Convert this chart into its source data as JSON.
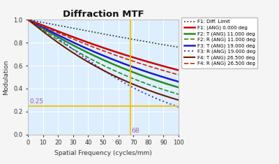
{
  "title": "Diffraction MTF",
  "xlabel": "Spatial Frequency (cycles/mm)",
  "ylabel": "Modulation",
  "xlim": [
    0,
    100
  ],
  "ylim": [
    0,
    1.0
  ],
  "bg_color": "#ddeeff",
  "fig_bg_color": "#f5f5f5",
  "vline_x": 68,
  "hline_y": 0.25,
  "vline_color": "#f5c000",
  "hline_color": "#f5c000",
  "annotation_68": "68",
  "annotation_025": "0.25",
  "annotation_color": "#9b59b6",
  "curves": [
    {
      "id": "diff_limit",
      "color": "#222222",
      "ls": "dotted",
      "lw": 1.2,
      "label": "F1: Diff. Limit",
      "v0": 1.0,
      "v100": 0.76
    },
    {
      "id": "f1t",
      "color": "#cc0000",
      "ls": "solid",
      "lw": 1.8,
      "label": "F1: (ANG) 0.000 deg",
      "v0": 1.0,
      "v100": 0.56
    },
    {
      "id": "f2t",
      "color": "#228b22",
      "ls": "solid",
      "lw": 1.8,
      "label": "F2: T (ANG) 11.000 deg",
      "v0": 1.0,
      "v100": 0.41
    },
    {
      "id": "f2r",
      "color": "#228b22",
      "ls": "dashed",
      "lw": 1.2,
      "label": "F2: R (ANG) 11.000 deg",
      "v0": 1.0,
      "v100": 0.35
    },
    {
      "id": "f3t",
      "color": "#1a1acc",
      "ls": "solid",
      "lw": 1.8,
      "label": "F3: T (ANG) 19.000 deg",
      "v0": 1.0,
      "v100": 0.46
    },
    {
      "id": "f3r",
      "color": "#4444dd",
      "ls": "dotted",
      "lw": 1.5,
      "label": "F3: R (ANG) 19.000 deg",
      "v0": 1.0,
      "v100": 0.24
    },
    {
      "id": "f4t",
      "color": "#6b1a00",
      "ls": "solid",
      "lw": 1.5,
      "label": "F4: T (ANG) 26.500 deg",
      "v0": 1.0,
      "v100": 0.3
    },
    {
      "id": "f4r",
      "color": "#cc2200",
      "ls": "dashed",
      "lw": 1.2,
      "label": "F4: R (ANG) 26.500 deg",
      "v0": 1.0,
      "v100": 0.52
    }
  ]
}
